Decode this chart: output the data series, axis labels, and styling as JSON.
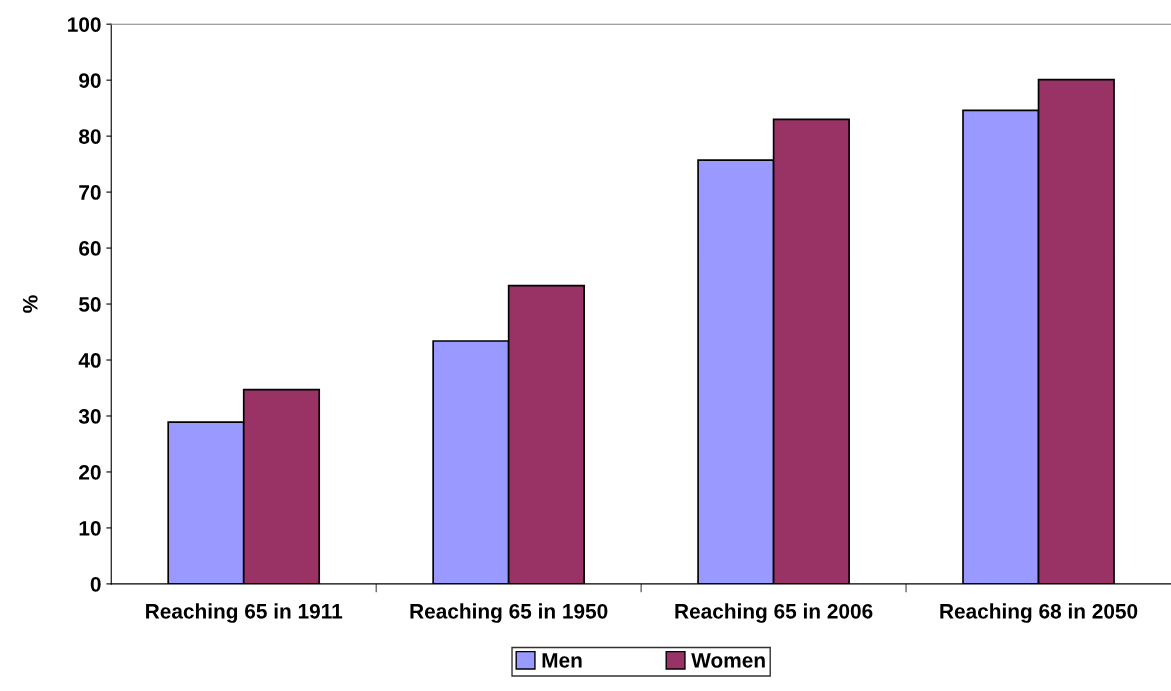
{
  "chart_data": {
    "type": "bar",
    "ylabel": "%",
    "categories": [
      "Reaching 65 in 1911",
      "Reaching 65 in 1950",
      "Reaching 65 in 2006",
      "Reaching 68 in 2050"
    ],
    "series": [
      {
        "name": "Men",
        "color": "#9999ff",
        "values": [
          28.9,
          43.4,
          75.7,
          84.6
        ]
      },
      {
        "name": "Women",
        "color": "#993366",
        "values": [
          34.7,
          53.3,
          83.0,
          90.1
        ]
      }
    ],
    "ylim": [
      0,
      100
    ],
    "yticks": [
      0,
      10,
      20,
      30,
      40,
      50,
      60,
      70,
      80,
      90,
      100
    ],
    "grid": false,
    "legend": "bottom"
  }
}
